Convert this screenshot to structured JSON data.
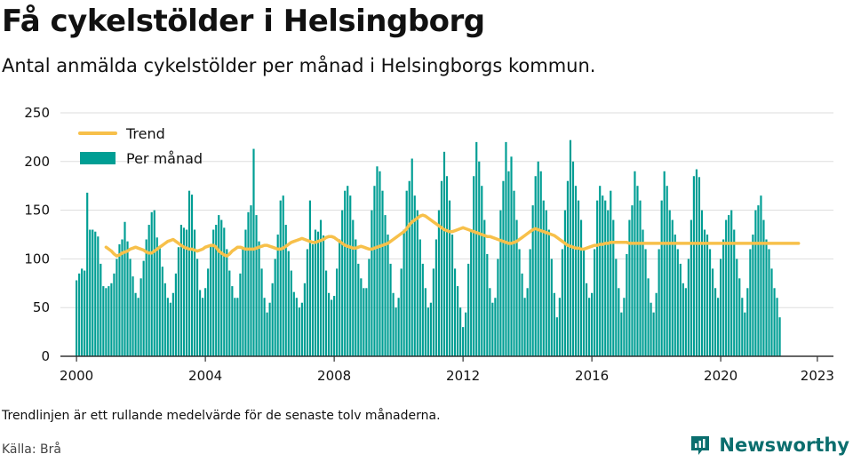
{
  "title": "Få cykelstölder i Helsingborg",
  "subtitle": "Antal anmälda cykelstölder per månad i Helsingborgs kommun.",
  "note": "Trendlinjen är ett rullande medelvärde för de senaste tolv månaderna.",
  "source": "Källa: Brå",
  "brand": "Newsworthy",
  "colors": {
    "bars": "#009e94",
    "trend": "#f7c04a",
    "grid": "#dddddd",
    "axis": "#333333",
    "brand": "#0b6e6e"
  },
  "chart_data": {
    "type": "bar",
    "legend": {
      "position": "top-left",
      "entries": [
        "Trend",
        "Per månad"
      ]
    },
    "grid": true,
    "xlim": [
      1999.5,
      2023.5
    ],
    "ylim": [
      0,
      250
    ],
    "x_ticks": [
      2000,
      2004,
      2008,
      2012,
      2016,
      2020,
      2023
    ],
    "x_tick_labels": [
      "2000",
      "2004",
      "2008",
      "2012",
      "2016",
      "2020",
      "2023"
    ],
    "y_ticks": [
      0,
      50,
      100,
      150,
      200,
      250
    ],
    "y_tick_labels": [
      "0",
      "50",
      "100",
      "150",
      "200",
      "250"
    ],
    "start": "2000-01",
    "series": [
      {
        "name": "Per månad",
        "type": "bar",
        "values": [
          78,
          85,
          90,
          88,
          168,
          130,
          130,
          128,
          123,
          95,
          72,
          70,
          72,
          75,
          85,
          100,
          115,
          120,
          138,
          118,
          100,
          82,
          65,
          60,
          80,
          98,
          120,
          135,
          148,
          150,
          122,
          112,
          92,
          75,
          60,
          55,
          65,
          85,
          112,
          135,
          132,
          130,
          170,
          166,
          130,
          100,
          68,
          60,
          70,
          90,
          115,
          130,
          135,
          145,
          140,
          132,
          110,
          88,
          72,
          60,
          60,
          85,
          112,
          130,
          148,
          155,
          213,
          145,
          118,
          90,
          60,
          45,
          55,
          75,
          100,
          125,
          160,
          165,
          135,
          108,
          88,
          66,
          60,
          50,
          55,
          75,
          110,
          160,
          115,
          130,
          128,
          140,
          124,
          88,
          65,
          58,
          62,
          90,
          120,
          150,
          170,
          175,
          165,
          140,
          120,
          95,
          80,
          70,
          70,
          100,
          150,
          175,
          195,
          190,
          170,
          145,
          125,
          95,
          65,
          50,
          60,
          90,
          130,
          170,
          180,
          203,
          165,
          150,
          120,
          95,
          70,
          50,
          55,
          90,
          120,
          150,
          180,
          210,
          185,
          160,
          125,
          90,
          72,
          50,
          30,
          45,
          95,
          130,
          185,
          220,
          200,
          175,
          140,
          105,
          70,
          55,
          60,
          100,
          150,
          180,
          220,
          190,
          205,
          170,
          140,
          110,
          85,
          60,
          70,
          110,
          155,
          185,
          200,
          190,
          160,
          150,
          130,
          100,
          65,
          40,
          60,
          110,
          150,
          180,
          222,
          200,
          175,
          160,
          140,
          110,
          75,
          60,
          65,
          110,
          160,
          175,
          165,
          160,
          150,
          170,
          140,
          100,
          70,
          45,
          60,
          105,
          140,
          155,
          190,
          175,
          160,
          130,
          110,
          80,
          55,
          45,
          65,
          110,
          160,
          190,
          175,
          150,
          140,
          125,
          110,
          95,
          75,
          70,
          100,
          140,
          185,
          192,
          184,
          150,
          130,
          125,
          110,
          90,
          70,
          60,
          100,
          120,
          140,
          145,
          150,
          130,
          100,
          80,
          60,
          45,
          70,
          110,
          125,
          150,
          155,
          165,
          140,
          120,
          110,
          90,
          70,
          60,
          40
        ]
      },
      {
        "name": "Trend",
        "type": "line",
        "start": "2000-12",
        "values": [
          112,
          110,
          108,
          105,
          103,
          104,
          106,
          107,
          108,
          110,
          111,
          112,
          111,
          110,
          109,
          107,
          106,
          106,
          108,
          110,
          112,
          114,
          116,
          118,
          119,
          120,
          118,
          116,
          114,
          112,
          111,
          110,
          110,
          109,
          108,
          109,
          110,
          112,
          113,
          114,
          114,
          112,
          108,
          106,
          104,
          103,
          105,
          108,
          110,
          112,
          112,
          111,
          110,
          110,
          110,
          110,
          111,
          112,
          113,
          114,
          114,
          113,
          112,
          111,
          110,
          110,
          111,
          113,
          115,
          117,
          118,
          119,
          120,
          121,
          120,
          119,
          118,
          117,
          117,
          118,
          119,
          120,
          122,
          123,
          123,
          122,
          120,
          118,
          116,
          114,
          113,
          112,
          111,
          111,
          112,
          113,
          112,
          111,
          110,
          110,
          111,
          112,
          113,
          114,
          115,
          116,
          118,
          120,
          122,
          124,
          126,
          128,
          131,
          135,
          138,
          140,
          142,
          144,
          145,
          144,
          142,
          140,
          138,
          136,
          134,
          132,
          130,
          129,
          128,
          128,
          129,
          130,
          131,
          132,
          131,
          130,
          129,
          128,
          127,
          126,
          125,
          124,
          123,
          123,
          122,
          121,
          120,
          119,
          118,
          117,
          116,
          116,
          117,
          118,
          120,
          122,
          124,
          126,
          128,
          130,
          131,
          130,
          129,
          128,
          127,
          126,
          125,
          124,
          122,
          120,
          118,
          116,
          114,
          113,
          112,
          111,
          111,
          110,
          110,
          111,
          112,
          113,
          114,
          114,
          115,
          115,
          116,
          116,
          117,
          117,
          117,
          117,
          117,
          117,
          117,
          116,
          116,
          116,
          116,
          116,
          116,
          116,
          116,
          116,
          116,
          116,
          116,
          116,
          116,
          116,
          116,
          116,
          116,
          116,
          116,
          116,
          116,
          116,
          116,
          116,
          116,
          116,
          116,
          116,
          116,
          116,
          116,
          116,
          116,
          116,
          116,
          116,
          116,
          116,
          116,
          116,
          116,
          116,
          116,
          116,
          116,
          116,
          116,
          116,
          116,
          116,
          116,
          116,
          116,
          116,
          116,
          116,
          116,
          116,
          116,
          116,
          116,
          116,
          116
        ]
      }
    ]
  }
}
